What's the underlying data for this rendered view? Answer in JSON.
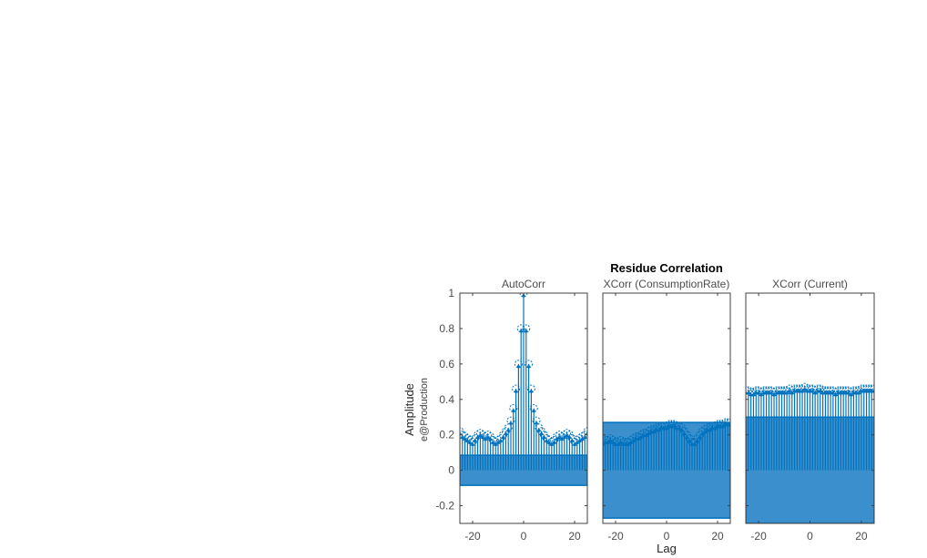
{
  "figure": {
    "title": "Residue Correlation",
    "xlabel": "Lag",
    "ylabel": "Amplitude",
    "ylabel_sub": "e@Production",
    "colors": {
      "stem": "#0072BD",
      "band": "#3B8FCC",
      "axis": "#404040",
      "tick_text": "#4D4D4D"
    }
  },
  "chart_data": [
    {
      "type": "stem",
      "title": "AutoCorr",
      "xlabel": "Lag",
      "ylabel": "Amplitude e@Production",
      "xlim": [
        -25,
        25
      ],
      "ylim": [
        -0.3,
        1
      ],
      "xticks": [
        -20,
        0,
        20
      ],
      "yticks": [
        -0.2,
        0,
        0.2,
        0.4,
        0.6,
        0.8,
        1
      ],
      "ytick_labels": [
        "-0.2",
        "0",
        "0.2",
        "0.4",
        "0.6",
        "0.8",
        "1"
      ],
      "confidence_band": [
        -0.085,
        0.085
      ],
      "x": [
        -25,
        -24,
        -23,
        -22,
        -21,
        -20,
        -19,
        -18,
        -17,
        -16,
        -15,
        -14,
        -13,
        -12,
        -11,
        -10,
        -9,
        -8,
        -7,
        -6,
        -5,
        -4,
        -3,
        -2,
        -1,
        0,
        1,
        2,
        3,
        4,
        5,
        6,
        7,
        8,
        9,
        10,
        11,
        12,
        13,
        14,
        15,
        16,
        17,
        18,
        19,
        20,
        21,
        22,
        23,
        24,
        25
      ],
      "values": [
        0.22,
        0.2,
        0.19,
        0.18,
        0.17,
        0.16,
        0.18,
        0.2,
        0.21,
        0.2,
        0.19,
        0.2,
        0.19,
        0.17,
        0.16,
        0.17,
        0.18,
        0.2,
        0.22,
        0.24,
        0.28,
        0.35,
        0.46,
        0.6,
        0.8,
        1.0,
        0.8,
        0.6,
        0.46,
        0.35,
        0.28,
        0.24,
        0.22,
        0.2,
        0.18,
        0.17,
        0.16,
        0.17,
        0.19,
        0.2,
        0.19,
        0.2,
        0.21,
        0.2,
        0.18,
        0.16,
        0.17,
        0.18,
        0.19,
        0.2,
        0.22
      ]
    },
    {
      "type": "stem",
      "title": "XCorr (ConsumptionRate)",
      "xlim": [
        -25,
        25
      ],
      "ylim": [
        -0.3,
        1
      ],
      "xticks": [
        -20,
        0,
        20
      ],
      "confidence_band": [
        -0.27,
        0.27
      ],
      "x": [
        -25,
        -24,
        -23,
        -22,
        -21,
        -20,
        -19,
        -18,
        -17,
        -16,
        -15,
        -14,
        -13,
        -12,
        -11,
        -10,
        -9,
        -8,
        -7,
        -6,
        -5,
        -4,
        -3,
        -2,
        -1,
        0,
        1,
        2,
        3,
        4,
        5,
        6,
        7,
        8,
        9,
        10,
        11,
        12,
        13,
        14,
        15,
        16,
        17,
        18,
        19,
        20,
        21,
        22,
        23,
        24,
        25
      ],
      "values": [
        0.16,
        0.17,
        0.17,
        0.18,
        0.17,
        0.16,
        0.16,
        0.17,
        0.16,
        0.16,
        0.16,
        0.17,
        0.18,
        0.19,
        0.19,
        0.2,
        0.21,
        0.21,
        0.22,
        0.23,
        0.23,
        0.24,
        0.24,
        0.25,
        0.25,
        0.25,
        0.26,
        0.26,
        0.26,
        0.25,
        0.25,
        0.24,
        0.22,
        0.2,
        0.18,
        0.16,
        0.16,
        0.18,
        0.2,
        0.22,
        0.23,
        0.24,
        0.24,
        0.25,
        0.25,
        0.26,
        0.26,
        0.26,
        0.27,
        0.27,
        0.27
      ]
    },
    {
      "type": "stem",
      "title": "XCorr (Current)",
      "xlim": [
        -25,
        25
      ],
      "ylim": [
        -0.3,
        1
      ],
      "xticks": [
        -20,
        0,
        20
      ],
      "confidence_band": [
        -0.3,
        0.3
      ],
      "x": [
        -25,
        -24,
        -23,
        -22,
        -21,
        -20,
        -19,
        -18,
        -17,
        -16,
        -15,
        -14,
        -13,
        -12,
        -11,
        -10,
        -9,
        -8,
        -7,
        -6,
        -5,
        -4,
        -3,
        -2,
        -1,
        0,
        1,
        2,
        3,
        4,
        5,
        6,
        7,
        8,
        9,
        10,
        11,
        12,
        13,
        14,
        15,
        16,
        17,
        18,
        19,
        20,
        21,
        22,
        23,
        24,
        25
      ],
      "values": [
        0.45,
        0.45,
        0.44,
        0.44,
        0.45,
        0.45,
        0.44,
        0.45,
        0.45,
        0.45,
        0.45,
        0.44,
        0.45,
        0.45,
        0.45,
        0.45,
        0.45,
        0.46,
        0.45,
        0.46,
        0.46,
        0.46,
        0.46,
        0.47,
        0.46,
        0.46,
        0.46,
        0.45,
        0.46,
        0.46,
        0.45,
        0.45,
        0.45,
        0.45,
        0.45,
        0.44,
        0.45,
        0.45,
        0.45,
        0.45,
        0.45,
        0.44,
        0.45,
        0.45,
        0.45,
        0.46,
        0.46,
        0.46,
        0.46,
        0.46,
        0.46
      ]
    }
  ],
  "xtick_labels": [
    "-20",
    "0",
    "20"
  ]
}
